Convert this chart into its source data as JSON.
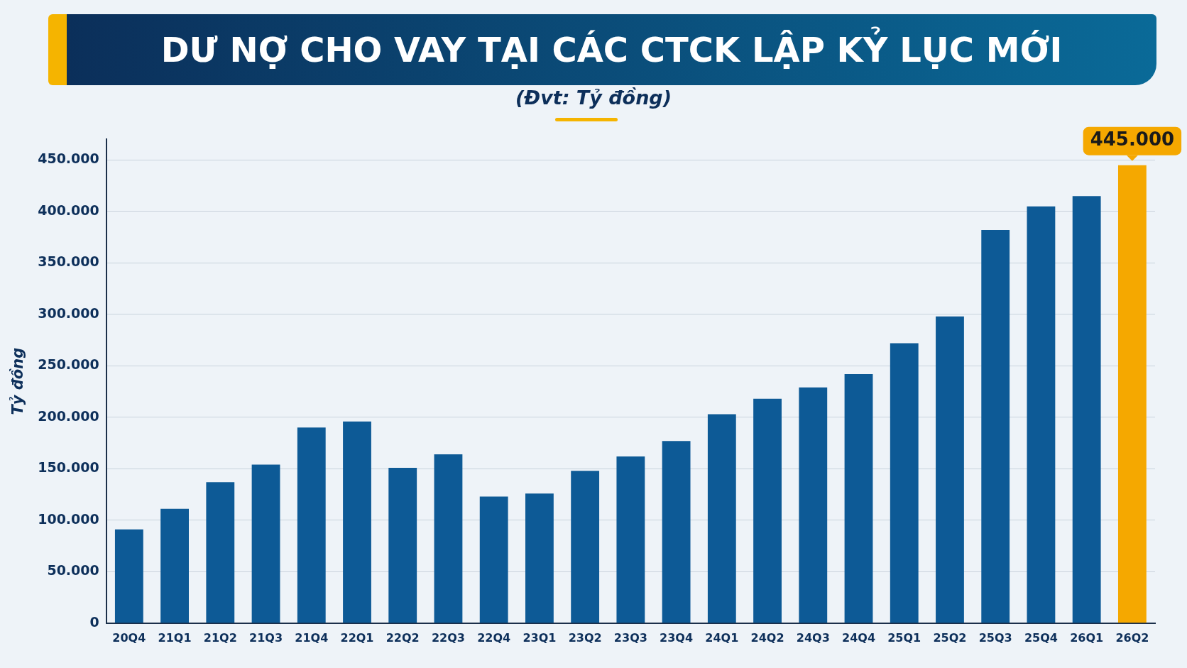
{
  "chart_data": {
    "type": "bar",
    "title": "DƯ NỢ CHO VAY TẠI CÁC CTCK LẬP KỶ LỤC MỚI",
    "subtitle": "(Đvt: Tỷ đồng)",
    "ylabel": "Tỷ đồng",
    "categories": [
      "20Q4",
      "21Q1",
      "21Q2",
      "21Q3",
      "21Q4",
      "22Q1",
      "22Q2",
      "22Q3",
      "22Q4",
      "23Q1",
      "23Q2",
      "23Q3",
      "23Q4",
      "24Q1",
      "24Q2",
      "24Q3",
      "24Q4",
      "25Q1",
      "25Q2",
      "25Q3",
      "25Q4",
      "26Q1",
      "26Q2"
    ],
    "values": [
      91000,
      111000,
      137000,
      154000,
      190000,
      196000,
      151000,
      164000,
      123000,
      126000,
      148000,
      162000,
      177000,
      203000,
      218000,
      229000,
      242000,
      272000,
      298000,
      382000,
      405000,
      415000,
      445000
    ],
    "colors": [
      "#0d5a96",
      "#0d5a96",
      "#0d5a96",
      "#0d5a96",
      "#0d5a96",
      "#0d5a96",
      "#0d5a96",
      "#0d5a96",
      "#0d5a96",
      "#0d5a96",
      "#0d5a96",
      "#0d5a96",
      "#0d5a96",
      "#0d5a96",
      "#0d5a96",
      "#0d5a96",
      "#0d5a96",
      "#0d5a96",
      "#0d5a96",
      "#0d5a96",
      "#0d5a96",
      "#0d5a96",
      "#f5a800"
    ],
    "value_labels": [
      null,
      null,
      null,
      null,
      null,
      null,
      null,
      null,
      null,
      null,
      null,
      null,
      null,
      null,
      null,
      null,
      null,
      null,
      null,
      null,
      null,
      null,
      "445.000"
    ],
    "ylim": [
      0,
      470000
    ],
    "yticks": [
      {
        "value": 0,
        "label": "0"
      },
      {
        "value": 50000,
        "label": "50.000"
      },
      {
        "value": 100000,
        "label": "100.000"
      },
      {
        "value": 150000,
        "label": "150.000"
      },
      {
        "value": 200000,
        "label": "200.000"
      },
      {
        "value": 250000,
        "label": "250.000"
      },
      {
        "value": 300000,
        "label": "300.000"
      },
      {
        "value": 350000,
        "label": "350.000"
      },
      {
        "value": 400000,
        "label": "400.000"
      },
      {
        "value": 450000,
        "label": "450.000"
      }
    ],
    "grid": "y",
    "legend": false
  }
}
